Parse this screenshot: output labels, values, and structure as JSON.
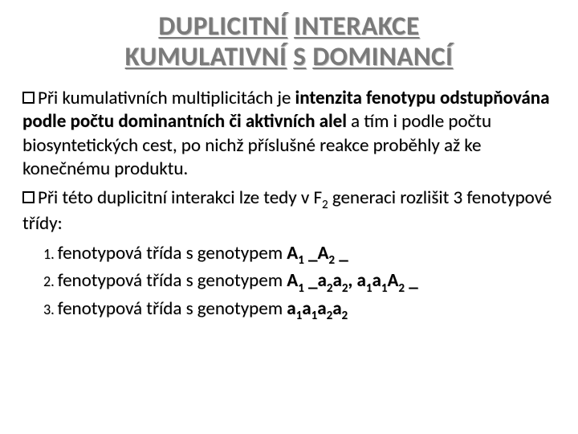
{
  "title": {
    "line1_words": [
      "DUPLICITNÍ",
      "INTERAKCE"
    ],
    "line2_words": [
      "KUMULATIVNÍ",
      "S",
      "DOMINANCÍ"
    ]
  },
  "para1": {
    "prefix": "Při",
    "text1": " kumulativních multiplicitách je ",
    "bold1a": "intenzita",
    "bold1b": "fenotypu odstupňována podle počtu",
    "bold1c": "dominantních či aktivních alel",
    "text2": " a tím i podle počtu biosyntetických cest, po nichž příslušné reakce proběhly až ke konečnému produktu."
  },
  "para2": {
    "prefix": "Při",
    "text1": " této duplicitní interakci lze tedy v F",
    "sub1": "2",
    "text2": " generaci rozlišit 3 fenotypové třídy:"
  },
  "items": [
    {
      "num": "1.",
      "text": "fenotypová třída s genotypem ",
      "geno_parts": [
        "A",
        "1",
        " _A",
        "2",
        " _"
      ]
    },
    {
      "num": "2.",
      "text": "fenotypová třída s genotypem ",
      "geno_parts": [
        "A",
        "1",
        " _a",
        "2",
        "a",
        "2",
        ", a",
        "1",
        "a",
        "1",
        "A",
        "2",
        " _"
      ]
    },
    {
      "num": "3.",
      "text": "fenotypová třída s genotypem ",
      "geno_parts": [
        "a",
        "1",
        "a",
        "1",
        "a",
        "2",
        "a",
        "2"
      ]
    }
  ],
  "colors": {
    "title_gray": "#7a7a7a",
    "text_black": "#000000",
    "bg": "#ffffff"
  },
  "fonts": {
    "title_size": 33,
    "body_size": 23,
    "sub_size": 15
  }
}
